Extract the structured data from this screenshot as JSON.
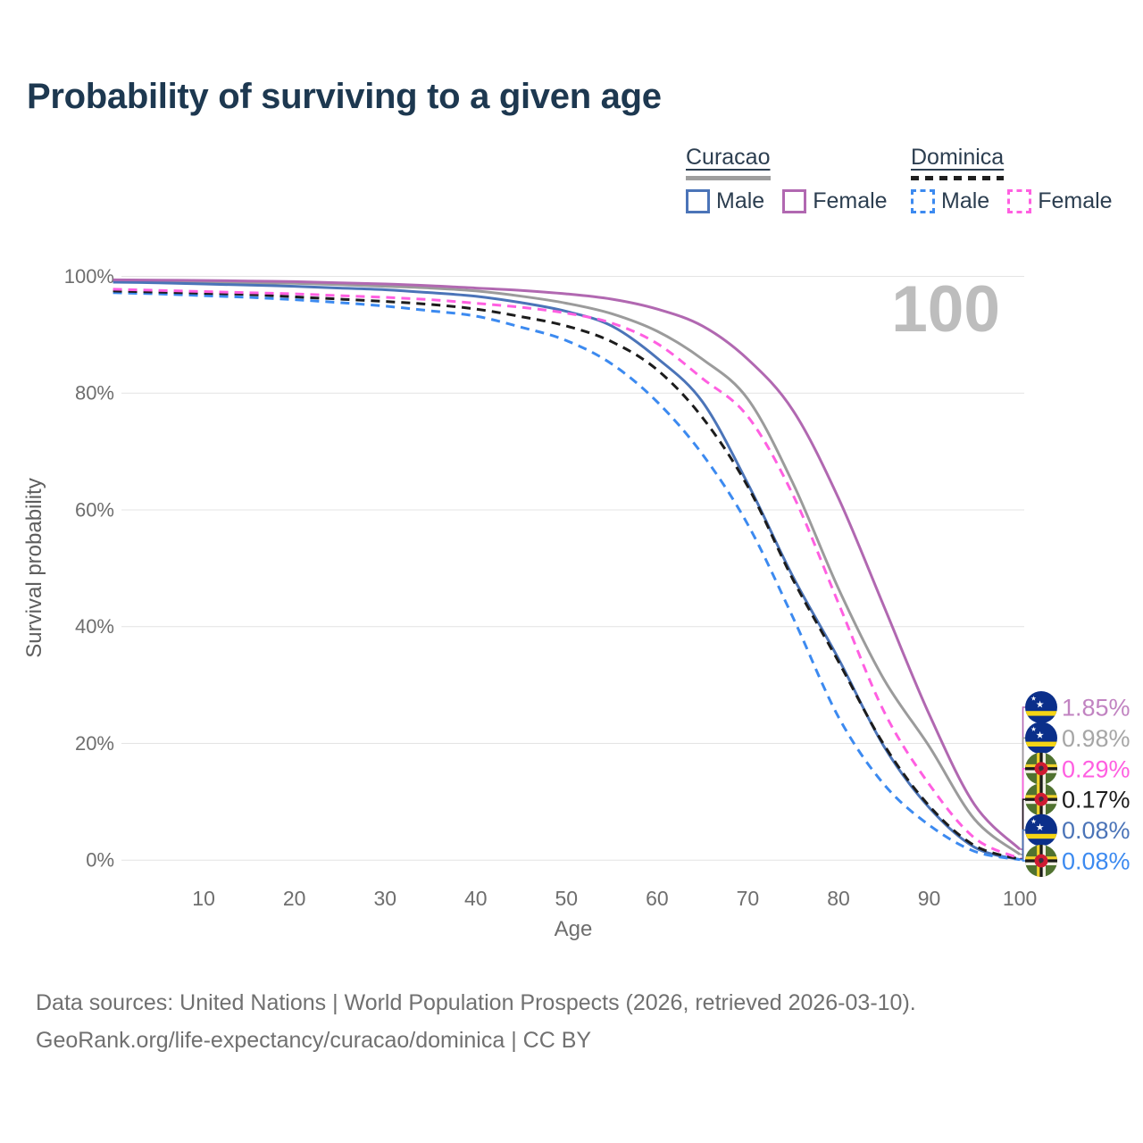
{
  "title": "Probability of surviving to a given age",
  "watermark": "100",
  "legend": {
    "groups": [
      {
        "name": "Curacao",
        "style": "solid",
        "underline_color": "#9e9e9e",
        "items": [
          {
            "label": "Male",
            "color": "#4b74b8",
            "dashed": false
          },
          {
            "label": "Female",
            "color": "#b168b1",
            "dashed": false
          }
        ]
      },
      {
        "name": "Dominica",
        "style": "dashed",
        "underline_color": "#1f1f1f",
        "items": [
          {
            "label": "Male",
            "color": "#3c8af0",
            "dashed": true
          },
          {
            "label": "Female",
            "color": "#ff5fe1",
            "dashed": true
          }
        ]
      }
    ]
  },
  "chart_data": {
    "type": "line",
    "title": "Probability of surviving to a given age",
    "xlabel": "Age",
    "ylabel": "Survival probability",
    "xlim": [
      0,
      100
    ],
    "ylim": [
      0,
      100
    ],
    "grid": true,
    "legend_position": "top-right",
    "x_ticks": [
      10,
      20,
      30,
      40,
      50,
      60,
      70,
      80,
      90,
      100
    ],
    "y_ticks": [
      {
        "value": 0,
        "label": "0%"
      },
      {
        "value": 20,
        "label": "20%"
      },
      {
        "value": 40,
        "label": "40%"
      },
      {
        "value": 60,
        "label": "60%"
      },
      {
        "value": 80,
        "label": "80%"
      },
      {
        "value": 100,
        "label": "100%"
      }
    ],
    "ages": [
      0,
      5,
      10,
      15,
      20,
      25,
      30,
      35,
      40,
      45,
      50,
      55,
      60,
      65,
      70,
      75,
      80,
      85,
      90,
      95,
      100
    ],
    "series": [
      {
        "id": "curacao-female",
        "name": "Curacao Female",
        "color": "#b168b1",
        "label_color": "#c183c1",
        "dashed": false,
        "flag": "curacao",
        "end_label": "1.85%",
        "values": [
          99.4,
          99.35,
          99.3,
          99.2,
          99.1,
          98.9,
          98.7,
          98.4,
          98.0,
          97.6,
          97.0,
          96.1,
          94.4,
          91.5,
          85.8,
          77.0,
          62.0,
          43.5,
          25.0,
          9.5,
          1.85
        ]
      },
      {
        "id": "curacao-both",
        "name": "Curacao",
        "color": "#9b9b9b",
        "label_color": "#a6a6a6",
        "dashed": false,
        "flag": "curacao",
        "end_label": "0.98%",
        "values": [
          99.2,
          99.1,
          99.0,
          98.9,
          98.8,
          98.6,
          98.3,
          98.0,
          97.5,
          96.6,
          95.4,
          93.6,
          90.6,
          85.8,
          79.0,
          64.5,
          46.5,
          31.0,
          19.5,
          7.0,
          0.98
        ]
      },
      {
        "id": "dominica-female",
        "name": "Dominica Female",
        "color": "#ff5fe1",
        "label_color": "#ff5fe1",
        "dashed": true,
        "flag": "dominica",
        "end_label": "0.29%",
        "values": [
          97.8,
          97.6,
          97.4,
          97.2,
          97.0,
          96.7,
          96.4,
          96.0,
          95.4,
          94.7,
          93.7,
          92.0,
          88.5,
          82.5,
          76.0,
          62.5,
          44.0,
          25.5,
          13.0,
          3.8,
          0.29
        ]
      },
      {
        "id": "dominica-both",
        "name": "Dominica",
        "color": "#1c1c1c",
        "label_color": "#1c1c1c",
        "dashed": true,
        "flag": "dominica",
        "end_label": "0.17%",
        "values": [
          97.5,
          97.3,
          97.1,
          96.9,
          96.5,
          96.1,
          95.7,
          95.2,
          94.4,
          93.1,
          91.5,
          88.8,
          84.0,
          75.8,
          64.0,
          48.0,
          34.0,
          19.8,
          9.3,
          2.5,
          0.17
        ]
      },
      {
        "id": "curacao-male",
        "name": "Curacao Male",
        "color": "#4b74b8",
        "label_color": "#4b74b8",
        "dashed": false,
        "flag": "curacao",
        "end_label": "0.08%",
        "values": [
          99.0,
          98.9,
          98.7,
          98.5,
          98.3,
          98.0,
          97.7,
          97.2,
          96.6,
          95.5,
          94.0,
          91.5,
          86.0,
          78.5,
          64.5,
          48.5,
          34.5,
          19.5,
          9.0,
          2.2,
          0.08
        ]
      },
      {
        "id": "dominica-male",
        "name": "Dominica Male",
        "color": "#3c8af0",
        "label_color": "#3c8af0",
        "dashed": true,
        "flag": "dominica",
        "end_label": "0.08%",
        "values": [
          97.2,
          97.0,
          96.7,
          96.4,
          96.0,
          95.5,
          94.9,
          94.1,
          93.2,
          91.3,
          89.0,
          85.0,
          78.5,
          69.5,
          57.5,
          41.5,
          24.5,
          13.0,
          6.0,
          1.5,
          0.08
        ]
      }
    ]
  },
  "footer": {
    "line1": "Data sources: United Nations | World Population Prospects (2026, retrieved 2026-03-10).",
    "line2": "GeoRank.org/life-expectancy/curacao/dominica | CC BY"
  }
}
